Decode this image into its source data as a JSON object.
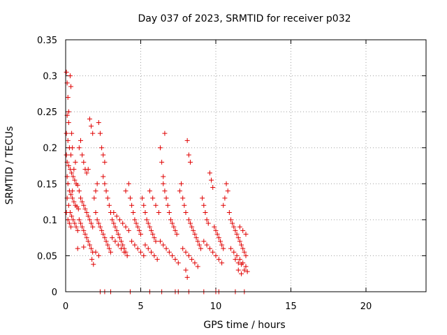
{
  "chart_data": {
    "type": "scatter",
    "title": "Day 037 of 2023, SRMTID for receiver p032",
    "xlabel": "GPS time / hours",
    "ylabel": "SRMTID / TECUs",
    "xlim": [
      0,
      24
    ],
    "ylim": [
      0,
      0.35
    ],
    "xticks": [
      0,
      5,
      10,
      15,
      20
    ],
    "xtick_labels": [
      "0",
      "5",
      "10",
      "15",
      "20"
    ],
    "yticks": [
      0,
      0.05,
      0.1,
      0.15,
      0.2,
      0.25,
      0.3,
      0.35
    ],
    "ytick_labels": [
      "0",
      "0.05",
      "0.1",
      "0.15",
      "0.2",
      "0.25",
      "0.3",
      "0.35"
    ],
    "grid": true,
    "marker": "+",
    "color": "#e00000",
    "series": [
      {
        "name": "p032",
        "points": [
          [
            0.05,
            0.305
          ],
          [
            0.1,
            0.29
          ],
          [
            0.15,
            0.27
          ],
          [
            0.2,
            0.25
          ],
          [
            0.3,
            0.3
          ],
          [
            0.35,
            0.285
          ],
          [
            0.1,
            0.245
          ],
          [
            0.2,
            0.235
          ],
          [
            0.05,
            0.22
          ],
          [
            0.15,
            0.21
          ],
          [
            0.25,
            0.2
          ],
          [
            0.35,
            0.19
          ],
          [
            0.4,
            0.22
          ],
          [
            0.45,
            0.2
          ],
          [
            0.05,
            0.19
          ],
          [
            0.1,
            0.18
          ],
          [
            0.2,
            0.175
          ],
          [
            0.3,
            0.17
          ],
          [
            0.4,
            0.165
          ],
          [
            0.5,
            0.16
          ],
          [
            0.6,
            0.155
          ],
          [
            0.7,
            0.15
          ],
          [
            0.8,
            0.148
          ],
          [
            0.1,
            0.16
          ],
          [
            0.15,
            0.15
          ],
          [
            0.25,
            0.14
          ],
          [
            0.35,
            0.135
          ],
          [
            0.45,
            0.13
          ],
          [
            0.55,
            0.125
          ],
          [
            0.65,
            0.12
          ],
          [
            0.75,
            0.118
          ],
          [
            0.85,
            0.115
          ],
          [
            0.1,
            0.13
          ],
          [
            0.2,
            0.12
          ],
          [
            0.3,
            0.11
          ],
          [
            0.4,
            0.105
          ],
          [
            0.5,
            0.1
          ],
          [
            0.6,
            0.095
          ],
          [
            0.7,
            0.09
          ],
          [
            0.8,
            0.085
          ],
          [
            0.05,
            0.11
          ],
          [
            0.15,
            0.1
          ],
          [
            0.25,
            0.095
          ],
          [
            0.35,
            0.09
          ],
          [
            0.45,
            0.14
          ],
          [
            0.55,
            0.17
          ],
          [
            0.65,
            0.18
          ],
          [
            0.9,
            0.2
          ],
          [
            1.0,
            0.21
          ],
          [
            1.1,
            0.19
          ],
          [
            1.2,
            0.18
          ],
          [
            1.3,
            0.17
          ],
          [
            1.4,
            0.165
          ],
          [
            1.5,
            0.17
          ],
          [
            1.6,
            0.24
          ],
          [
            1.7,
            0.23
          ],
          [
            1.8,
            0.22
          ],
          [
            0.9,
            0.14
          ],
          [
            1.0,
            0.13
          ],
          [
            1.1,
            0.125
          ],
          [
            1.2,
            0.12
          ],
          [
            1.3,
            0.115
          ],
          [
            1.4,
            0.11
          ],
          [
            1.5,
            0.105
          ],
          [
            1.6,
            0.1
          ],
          [
            1.7,
            0.095
          ],
          [
            1.8,
            0.09
          ],
          [
            0.9,
            0.1
          ],
          [
            1.0,
            0.095
          ],
          [
            1.1,
            0.09
          ],
          [
            1.2,
            0.085
          ],
          [
            1.3,
            0.08
          ],
          [
            1.4,
            0.075
          ],
          [
            1.5,
            0.07
          ],
          [
            1.6,
            0.065
          ],
          [
            1.7,
            0.06
          ],
          [
            1.8,
            0.055
          ],
          [
            0.8,
            0.06
          ],
          [
            1.2,
            0.062
          ],
          [
            1.75,
            0.045
          ],
          [
            1.85,
            0.038
          ],
          [
            1.9,
            0.13
          ],
          [
            2.0,
            0.14
          ],
          [
            2.1,
            0.15
          ],
          [
            2.2,
            0.235
          ],
          [
            2.3,
            0.22
          ],
          [
            2.4,
            0.2
          ],
          [
            2.5,
            0.19
          ],
          [
            2.6,
            0.18
          ],
          [
            2.0,
            0.11
          ],
          [
            2.1,
            0.1
          ],
          [
            2.2,
            0.095
          ],
          [
            2.3,
            0.09
          ],
          [
            2.4,
            0.085
          ],
          [
            2.5,
            0.08
          ],
          [
            2.6,
            0.075
          ],
          [
            2.7,
            0.07
          ],
          [
            2.8,
            0.065
          ],
          [
            2.9,
            0.06
          ],
          [
            3.0,
            0.055
          ],
          [
            2.0,
            0.055
          ],
          [
            2.2,
            0.05
          ],
          [
            2.5,
            0.16
          ],
          [
            2.6,
            0.15
          ],
          [
            2.7,
            0.14
          ],
          [
            2.8,
            0.13
          ],
          [
            2.9,
            0.12
          ],
          [
            3.0,
            0.11
          ],
          [
            3.1,
            0.1
          ],
          [
            3.2,
            0.095
          ],
          [
            3.3,
            0.09
          ],
          [
            3.4,
            0.085
          ],
          [
            3.5,
            0.08
          ],
          [
            3.6,
            0.075
          ],
          [
            3.7,
            0.07
          ],
          [
            3.8,
            0.065
          ],
          [
            3.9,
            0.06
          ],
          [
            4.0,
            0.055
          ],
          [
            3.1,
            0.075
          ],
          [
            3.3,
            0.07
          ],
          [
            3.5,
            0.065
          ],
          [
            3.7,
            0.06
          ],
          [
            3.9,
            0.055
          ],
          [
            4.1,
            0.05
          ],
          [
            3.2,
            0.11
          ],
          [
            3.4,
            0.105
          ],
          [
            3.6,
            0.1
          ],
          [
            3.8,
            0.095
          ],
          [
            4.0,
            0.09
          ],
          [
            4.2,
            0.085
          ],
          [
            4.0,
            0.14
          ],
          [
            4.2,
            0.15
          ],
          [
            4.3,
            0.13
          ],
          [
            4.4,
            0.12
          ],
          [
            4.5,
            0.11
          ],
          [
            4.6,
            0.1
          ],
          [
            4.7,
            0.095
          ],
          [
            4.8,
            0.09
          ],
          [
            4.9,
            0.085
          ],
          [
            5.0,
            0.08
          ],
          [
            4.4,
            0.07
          ],
          [
            4.6,
            0.065
          ],
          [
            4.8,
            0.06
          ],
          [
            5.0,
            0.055
          ],
          [
            5.2,
            0.05
          ],
          [
            5.1,
            0.13
          ],
          [
            5.2,
            0.12
          ],
          [
            5.3,
            0.11
          ],
          [
            5.4,
            0.1
          ],
          [
            5.5,
            0.095
          ],
          [
            5.6,
            0.09
          ],
          [
            5.7,
            0.085
          ],
          [
            5.8,
            0.08
          ],
          [
            5.9,
            0.075
          ],
          [
            6.0,
            0.07
          ],
          [
            5.3,
            0.065
          ],
          [
            5.5,
            0.06
          ],
          [
            5.7,
            0.055
          ],
          [
            5.9,
            0.05
          ],
          [
            6.1,
            0.045
          ],
          [
            5.6,
            0.14
          ],
          [
            5.8,
            0.13
          ],
          [
            6.0,
            0.12
          ],
          [
            6.2,
            0.11
          ],
          [
            6.3,
            0.2
          ],
          [
            6.4,
            0.18
          ],
          [
            6.5,
            0.16
          ],
          [
            6.6,
            0.22
          ],
          [
            6.5,
            0.15
          ],
          [
            6.6,
            0.14
          ],
          [
            6.7,
            0.13
          ],
          [
            6.8,
            0.12
          ],
          [
            6.9,
            0.11
          ],
          [
            7.0,
            0.1
          ],
          [
            7.1,
            0.095
          ],
          [
            7.2,
            0.09
          ],
          [
            7.3,
            0.085
          ],
          [
            7.4,
            0.08
          ],
          [
            6.3,
            0.07
          ],
          [
            6.5,
            0.065
          ],
          [
            6.7,
            0.06
          ],
          [
            6.9,
            0.055
          ],
          [
            7.1,
            0.05
          ],
          [
            7.3,
            0.045
          ],
          [
            7.5,
            0.04
          ],
          [
            7.6,
            0.14
          ],
          [
            7.7,
            0.15
          ],
          [
            7.8,
            0.13
          ],
          [
            7.9,
            0.12
          ],
          [
            8.0,
            0.11
          ],
          [
            8.1,
            0.21
          ],
          [
            8.2,
            0.19
          ],
          [
            8.3,
            0.18
          ],
          [
            8.2,
            0.1
          ],
          [
            8.3,
            0.095
          ],
          [
            8.4,
            0.09
          ],
          [
            8.5,
            0.085
          ],
          [
            8.6,
            0.08
          ],
          [
            8.7,
            0.075
          ],
          [
            8.8,
            0.07
          ],
          [
            8.9,
            0.065
          ],
          [
            9.0,
            0.06
          ],
          [
            7.8,
            0.06
          ],
          [
            8.0,
            0.055
          ],
          [
            8.2,
            0.05
          ],
          [
            8.4,
            0.045
          ],
          [
            8.6,
            0.04
          ],
          [
            8.8,
            0.035
          ],
          [
            8.1,
            0.02
          ],
          [
            8.0,
            0.03
          ],
          [
            9.1,
            0.13
          ],
          [
            9.2,
            0.12
          ],
          [
            9.3,
            0.11
          ],
          [
            9.4,
            0.1
          ],
          [
            9.5,
            0.095
          ],
          [
            9.6,
            0.165
          ],
          [
            9.7,
            0.155
          ],
          [
            9.8,
            0.145
          ],
          [
            9.9,
            0.09
          ],
          [
            10.0,
            0.085
          ],
          [
            10.1,
            0.08
          ],
          [
            10.2,
            0.075
          ],
          [
            10.3,
            0.07
          ],
          [
            10.4,
            0.065
          ],
          [
            10.5,
            0.06
          ],
          [
            9.2,
            0.07
          ],
          [
            9.4,
            0.065
          ],
          [
            9.6,
            0.06
          ],
          [
            9.8,
            0.055
          ],
          [
            10.0,
            0.05
          ],
          [
            10.2,
            0.045
          ],
          [
            10.4,
            0.04
          ],
          [
            10.5,
            0.12
          ],
          [
            10.6,
            0.13
          ],
          [
            10.7,
            0.15
          ],
          [
            10.8,
            0.14
          ],
          [
            10.9,
            0.11
          ],
          [
            11.0,
            0.1
          ],
          [
            11.1,
            0.095
          ],
          [
            11.2,
            0.09
          ],
          [
            11.3,
            0.085
          ],
          [
            11.4,
            0.08
          ],
          [
            11.5,
            0.075
          ],
          [
            11.6,
            0.07
          ],
          [
            11.7,
            0.065
          ],
          [
            11.8,
            0.06
          ],
          [
            11.9,
            0.055
          ],
          [
            12.0,
            0.05
          ],
          [
            11.0,
            0.06
          ],
          [
            11.2,
            0.055
          ],
          [
            11.4,
            0.05
          ],
          [
            11.6,
            0.045
          ],
          [
            11.8,
            0.04
          ],
          [
            12.0,
            0.035
          ],
          [
            11.5,
            0.03
          ],
          [
            11.7,
            0.025
          ],
          [
            11.9,
            0.03
          ],
          [
            12.1,
            0.028
          ],
          [
            11.6,
            0.09
          ],
          [
            11.8,
            0.085
          ],
          [
            12.0,
            0.08
          ],
          [
            11.3,
            0.045
          ],
          [
            11.5,
            0.04
          ],
          [
            11.7,
            0.038
          ],
          [
            2.3,
            0.0
          ],
          [
            2.6,
            0.0
          ],
          [
            3.0,
            0.0
          ],
          [
            4.3,
            0.0
          ],
          [
            5.6,
            0.0
          ],
          [
            6.4,
            0.0
          ],
          [
            7.3,
            0.0
          ],
          [
            7.5,
            0.0
          ],
          [
            8.2,
            0.0
          ],
          [
            9.2,
            0.0
          ],
          [
            10.0,
            0.0
          ],
          [
            10.2,
            0.0
          ],
          [
            11.3,
            0.0
          ],
          [
            11.9,
            0.0
          ]
        ]
      }
    ]
  }
}
